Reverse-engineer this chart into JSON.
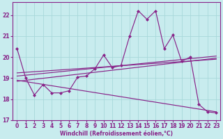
{
  "xlabel": "Windchill (Refroidissement éolien,°C)",
  "background_color": "#c8ecee",
  "grid_color": "#a8d8da",
  "line_color": "#882288",
  "xlim": [
    -0.5,
    23.5
  ],
  "ylim": [
    17.0,
    22.6
  ],
  "xticks": [
    0,
    1,
    2,
    3,
    4,
    5,
    6,
    7,
    8,
    9,
    10,
    11,
    12,
    13,
    14,
    15,
    16,
    17,
    18,
    19,
    20,
    21,
    22,
    23
  ],
  "yticks": [
    17,
    18,
    19,
    20,
    21,
    22
  ],
  "series1_x": [
    0,
    1,
    2,
    3,
    4,
    5,
    6,
    7,
    8,
    9,
    10,
    11,
    12,
    13,
    14,
    15,
    16,
    17,
    18,
    19,
    20,
    21,
    22,
    23
  ],
  "series1_y": [
    20.4,
    19.0,
    18.2,
    18.7,
    18.3,
    18.3,
    18.4,
    19.05,
    19.1,
    19.45,
    20.1,
    19.5,
    19.6,
    21.0,
    22.2,
    21.8,
    22.2,
    20.4,
    21.05,
    19.8,
    20.0,
    17.75,
    17.4,
    17.35
  ],
  "regline1_x": [
    0,
    23
  ],
  "regline1_y": [
    18.85,
    19.95
  ],
  "regline2_x": [
    0,
    23
  ],
  "regline2_y": [
    19.1,
    20.05
  ],
  "regline3_x": [
    0,
    23
  ],
  "regline3_y": [
    19.25,
    19.9
  ],
  "regline4_x": [
    0,
    23
  ],
  "regline4_y": [
    18.9,
    17.4
  ]
}
